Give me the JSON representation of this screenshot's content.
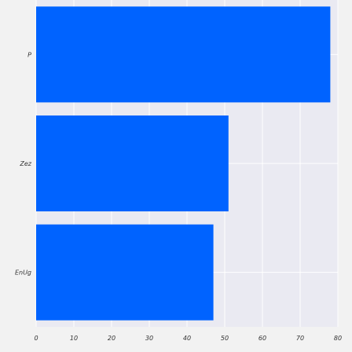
{
  "chart_data": {
    "type": "bar",
    "orientation": "horizontal",
    "categories": [
      "P",
      "Zez",
      "EnUg"
    ],
    "values": [
      78,
      51,
      47
    ],
    "xlim": [
      0,
      80
    ],
    "xticks": [
      0,
      10,
      20,
      30,
      40,
      50,
      60,
      70,
      80
    ],
    "xtick_labels": [
      "0",
      "10",
      "20",
      "30",
      "40",
      "50",
      "60",
      "70",
      "80"
    ],
    "title": "",
    "xlabel": "",
    "ylabel": "",
    "grid": true,
    "legend": "none",
    "colors": {
      "bar": "#0063ff",
      "plot_background": "#eaeaf2",
      "grid": "#ffffff",
      "page_background": "#f2f2f2"
    }
  }
}
